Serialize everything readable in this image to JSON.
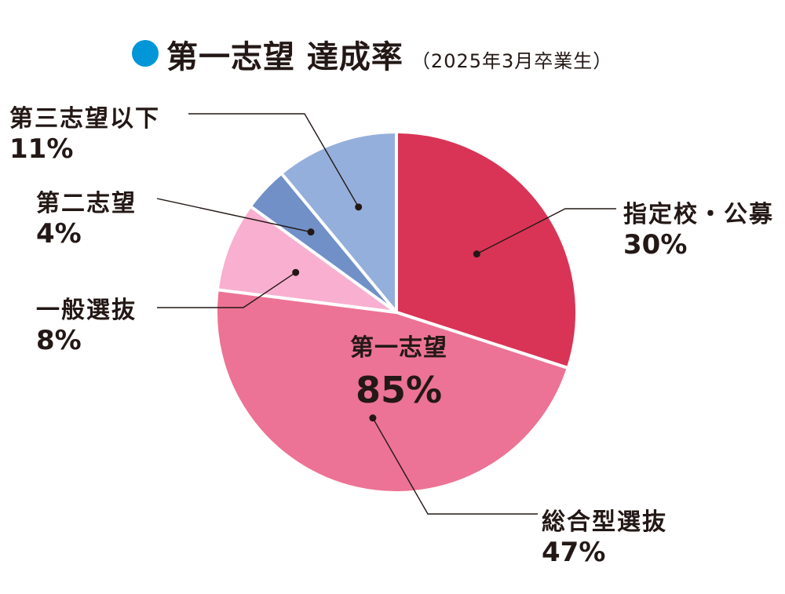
{
  "chart_data": {
    "type": "pie",
    "title": "第一志望 達成率",
    "subtitle": "（2025年3月卒業生）",
    "colors": {
      "title_dot": "#0096d8",
      "text": "#231815"
    },
    "slices": [
      {
        "label": "指定校・公募",
        "value": 30,
        "display": "30%",
        "color": "#d93456"
      },
      {
        "label": "総合型選抜",
        "value": 47,
        "display": "47%",
        "color": "#ec7395"
      },
      {
        "label": "一般選抜",
        "value": 8,
        "display": "8%",
        "color": "#f9afd0"
      },
      {
        "label": "第二志望",
        "value": 4,
        "display": "4%",
        "color": "#7190c8"
      },
      {
        "label": "第三志望以下",
        "value": 11,
        "display": "11%",
        "color": "#94afdb"
      }
    ],
    "center": {
      "label": "第一志望",
      "value": 85,
      "display": "85%"
    }
  }
}
